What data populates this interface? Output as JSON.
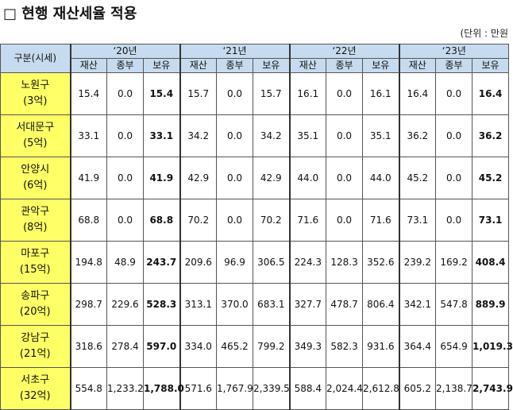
{
  "title": "□ 현행 재산세율 적용",
  "unit": "(단위 : 만원",
  "table": {
    "corner": "구분(시세)",
    "years": [
      {
        "label": "‘20년",
        "cols": [
          "재산",
          "종부",
          "보유"
        ]
      },
      {
        "label": "‘21년",
        "cols": [
          "재산",
          "종부",
          "보유"
        ]
      },
      {
        "label": "‘22년",
        "cols": [
          "재산",
          "종부",
          "보유"
        ]
      },
      {
        "label": "‘23년",
        "cols": [
          "재산",
          "종부",
          "보유"
        ]
      }
    ],
    "rows": [
      {
        "name": "노원구",
        "price": "(3억)",
        "cells": [
          "15.4",
          "0.0",
          "15.4",
          "15.7",
          "0.0",
          "15.7",
          "16.1",
          "0.0",
          "16.1",
          "16.4",
          "0.0",
          "16.4"
        ]
      },
      {
        "name": "서대문구",
        "price": "(5억)",
        "cells": [
          "33.1",
          "0.0",
          "33.1",
          "34.2",
          "0.0",
          "34.2",
          "35.1",
          "0.0",
          "35.1",
          "36.2",
          "0.0",
          "36.2"
        ]
      },
      {
        "name": "안양시",
        "price": "(6억)",
        "cells": [
          "41.9",
          "0.0",
          "41.9",
          "42.9",
          "0.0",
          "42.9",
          "44.0",
          "0.0",
          "44.0",
          "45.2",
          "0.0",
          "45.2"
        ]
      },
      {
        "name": "관악구",
        "price": "(8억)",
        "cells": [
          "68.8",
          "0.0",
          "68.8",
          "70.2",
          "0.0",
          "70.2",
          "71.6",
          "0.0",
          "71.6",
          "73.1",
          "0.0",
          "73.1"
        ]
      },
      {
        "name": "마포구",
        "price": "(15억)",
        "cells": [
          "194.8",
          "48.9",
          "243.7",
          "209.6",
          "96.9",
          "306.5",
          "224.3",
          "128.3",
          "352.6",
          "239.2",
          "169.2",
          "408.4"
        ]
      },
      {
        "name": "송파구",
        "price": "(20억)",
        "cells": [
          "298.7",
          "229.6",
          "528.3",
          "313.1",
          "370.0",
          "683.1",
          "327.7",
          "478.7",
          "806.4",
          "342.1",
          "547.8",
          "889.9"
        ]
      },
      {
        "name": "강남구",
        "price": "(21억)",
        "cells": [
          "318.6",
          "278.4",
          "597.0",
          "334.0",
          "465.2",
          "799.2",
          "349.3",
          "582.3",
          "931.6",
          "364.4",
          "654.9",
          "1,019.3"
        ]
      },
      {
        "name": "서초구",
        "price": "(32억)",
        "cells": [
          "554.8",
          "1,233.2",
          "1,788.0",
          "571.6",
          "1,767.9",
          "2,339.5",
          "588.4",
          "2,024.4",
          "2,612.8",
          "605.2",
          "2,138.7",
          "2,743.9"
        ]
      }
    ]
  }
}
